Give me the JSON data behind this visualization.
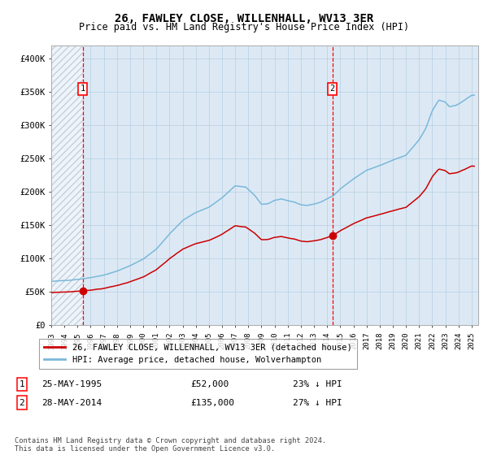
{
  "title": "26, FAWLEY CLOSE, WILLENHALL, WV13 3ER",
  "subtitle": "Price paid vs. HM Land Registry's House Price Index (HPI)",
  "sale1_date": "25-MAY-1995",
  "sale1_price": 52000,
  "sale1_label": "23% ↓ HPI",
  "sale1_year": 1995.39,
  "sale2_date": "28-MAY-2014",
  "sale2_price": 135000,
  "sale2_label": "27% ↓ HPI",
  "sale2_year": 2014.39,
  "legend_line1": "26, FAWLEY CLOSE, WILLENHALL, WV13 3ER (detached house)",
  "legend_line2": "HPI: Average price, detached house, Wolverhampton",
  "footer": "Contains HM Land Registry data © Crown copyright and database right 2024.\nThis data is licensed under the Open Government Licence v3.0.",
  "hpi_color": "#7ab8d9",
  "price_color": "#cc0000",
  "bg_color": "#dce9f5",
  "grid_color": "#b8cfe0",
  "ylim_max": 420000,
  "xmin": 1993.0,
  "xmax": 2025.5
}
